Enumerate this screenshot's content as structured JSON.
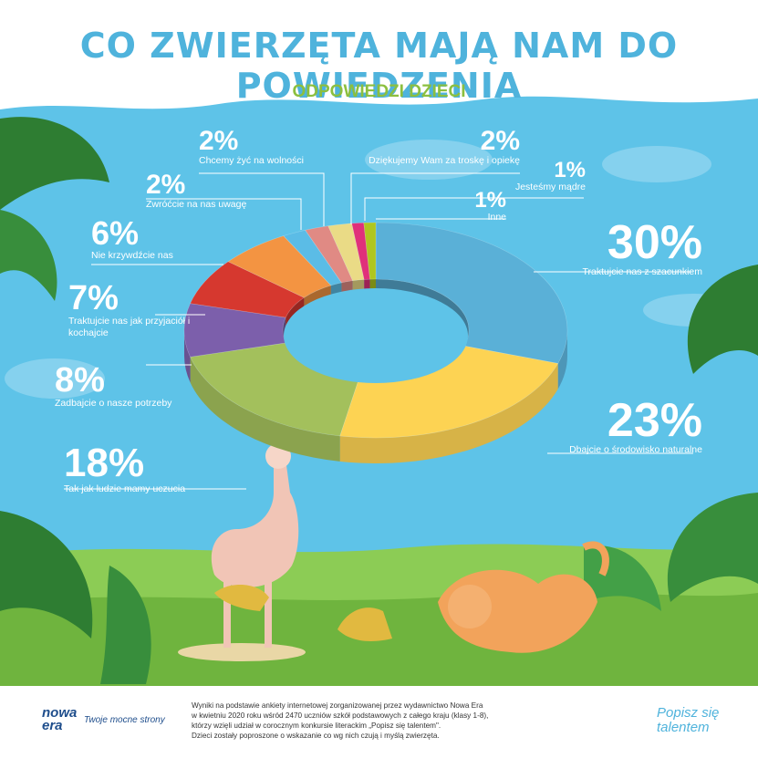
{
  "header": {
    "title": "CO ZWIERZĘTA MAJĄ NAM DO POWIEDZENIA",
    "subtitle": "ODPOWIEDZI DZIECI"
  },
  "colors": {
    "sky": "#5ec3e8",
    "title": "#4fb3dc",
    "subtitle": "#8cbf3f",
    "grass": "#7fbf4a"
  },
  "chart_data": {
    "type": "pie",
    "style": "donut-3d",
    "title": "CO ZWIERZĘTA MAJĄ NAM DO POWIEDZENIA",
    "subtitle": "ODPOWIEDZI DZIECI",
    "unit": "%",
    "slices": [
      {
        "label": "Traktujcie nas z szacunkiem",
        "value": 30,
        "display": "30%",
        "color": "#5ab0d7"
      },
      {
        "label": "Dbajcie o środowisko naturalne",
        "value": 23,
        "display": "23%",
        "color": "#fdd353"
      },
      {
        "label": "Tak jak ludzie mamy uczucia",
        "value": 18,
        "display": "18%",
        "color": "#a3c05c"
      },
      {
        "label": "Zadbajcie o nasze potrzeby",
        "value": 8,
        "display": "8%",
        "color": "#7c5fab"
      },
      {
        "label": "Traktujcie nas jak przyjaciół i kochajcie",
        "value": 7,
        "display": "7%",
        "color": "#d6382f"
      },
      {
        "label": "Nie krzywdźcie nas",
        "value": 6,
        "display": "6%",
        "color": "#f39442"
      },
      {
        "label": "Zwróćcie na nas uwagę",
        "value": 2,
        "display": "2%",
        "color": "#5bbce6"
      },
      {
        "label": "Chcemy żyć na wolności",
        "value": 2,
        "display": "2%",
        "color": "#e08a84"
      },
      {
        "label": "Dziękujemy Wam za troskę i opiekę",
        "value": 2,
        "display": "2%",
        "color": "#eadb86"
      },
      {
        "label": "Jesteśmy mądre",
        "value": 1,
        "display": "1%",
        "color": "#e0307a"
      },
      {
        "label": "Inne",
        "value": 1,
        "display": "1%",
        "color": "#afc61f"
      }
    ]
  },
  "footer": {
    "brand_line1": "nowa",
    "brand_line2": "era",
    "slogan": "Twoje mocne strony",
    "note_lines": [
      "Wyniki na podstawie ankiety internetowej zorganizowanej przez wydawnictwo Nowa Era",
      "w kwietniu 2020 roku wśród 2470 uczniów szkół podstawowych z całego kraju (klasy 1-8),",
      "którzy wzięli udział w corocznym konkursie literackim „Popisz się talentem\".",
      "Dzieci zostały poproszone o wskazanie co wg nich czują i myślą zwierzęta."
    ],
    "logo_line1": "Popisz się",
    "logo_line2": "talentem"
  }
}
